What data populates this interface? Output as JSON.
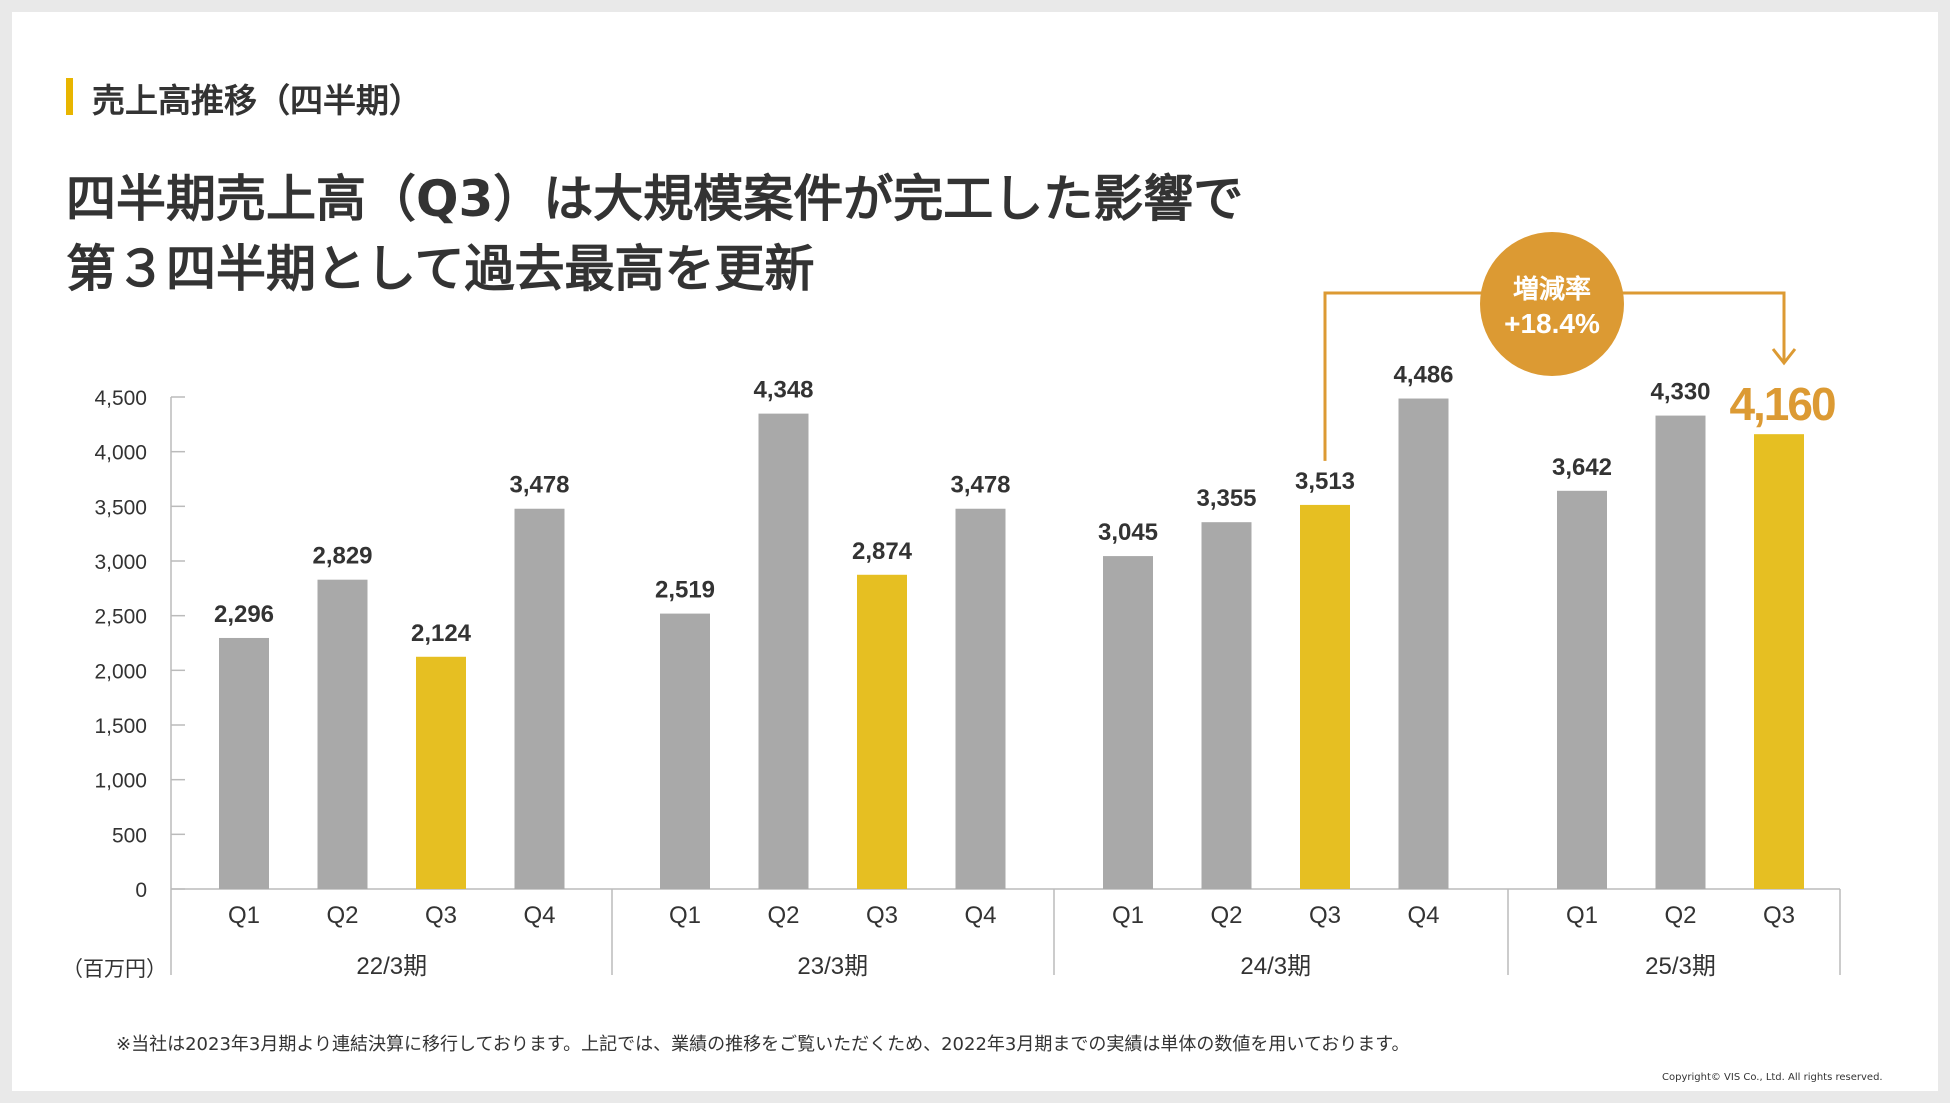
{
  "section_title": "売上高推移（四半期）",
  "headline": {
    "line1": "四半期売上高（Q3）は大規模案件が完工した影響で",
    "line2": "第３四半期として過去最高を更新"
  },
  "footnote": "※当社は2023年3月期より連結決算に移行しております。上記では、業績の推移をご覧いただくため、2022年3月期までの実績は単体の数値を用いております。",
  "copyright": "Copyright© VIS Co., Ltd. All rights reserved.",
  "colors": {
    "gray_bar": "#a9a9a9",
    "highlight_bar": "#e6bf22",
    "accent": "#dc9a33",
    "text": "#333333",
    "axis": "#bbbbbb"
  },
  "chart_data": {
    "type": "bar",
    "unit_label": "（百万円）",
    "ylim": [
      0,
      4500
    ],
    "yticks": [
      0,
      500,
      1000,
      1500,
      2000,
      2500,
      3000,
      3500,
      4000,
      4500
    ],
    "ytick_labels": [
      "0",
      "500",
      "1,000",
      "1,500",
      "2,000",
      "2,500",
      "3,000",
      "3,500",
      "4,000",
      "4,500"
    ],
    "groups": [
      {
        "label": "22/3期",
        "bars": [
          {
            "q": "Q1",
            "value": 2296,
            "label": "2,296",
            "highlight": false
          },
          {
            "q": "Q2",
            "value": 2829,
            "label": "2,829",
            "highlight": false
          },
          {
            "q": "Q3",
            "value": 2124,
            "label": "2,124",
            "highlight": true
          },
          {
            "q": "Q4",
            "value": 3478,
            "label": "3,478",
            "highlight": false
          }
        ]
      },
      {
        "label": "23/3期",
        "bars": [
          {
            "q": "Q1",
            "value": 2519,
            "label": "2,519",
            "highlight": false
          },
          {
            "q": "Q2",
            "value": 4348,
            "label": "4,348",
            "highlight": false
          },
          {
            "q": "Q3",
            "value": 2874,
            "label": "2,874",
            "highlight": true
          },
          {
            "q": "Q4",
            "value": 3478,
            "label": "3,478",
            "highlight": false
          }
        ]
      },
      {
        "label": "24/3期",
        "bars": [
          {
            "q": "Q1",
            "value": 3045,
            "label": "3,045",
            "highlight": false
          },
          {
            "q": "Q2",
            "value": 3355,
            "label": "3,355",
            "highlight": false
          },
          {
            "q": "Q3",
            "value": 3513,
            "label": "3,513",
            "highlight": true
          },
          {
            "q": "Q4",
            "value": 4486,
            "label": "4,486",
            "highlight": false
          }
        ]
      },
      {
        "label": "25/3期",
        "bars": [
          {
            "q": "Q1",
            "value": 3642,
            "label": "3,642",
            "highlight": false
          },
          {
            "q": "Q2",
            "value": 4330,
            "label": "4,330",
            "highlight": false
          },
          {
            "q": "Q3",
            "value": 4160,
            "label": "4,160",
            "highlight": true,
            "emphasis": true
          }
        ]
      }
    ],
    "annotation": {
      "title": "増減率",
      "value": "+18.4%",
      "from": "24/3期 Q3",
      "to": "25/3期 Q3"
    }
  }
}
